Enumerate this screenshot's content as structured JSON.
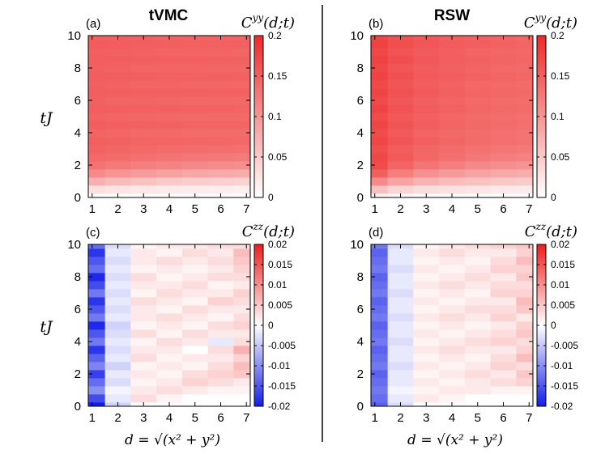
{
  "figure": {
    "panel_labels": [
      "(a)",
      "(b)",
      "(c)",
      "(d)"
    ],
    "column_titles": [
      "tVMC",
      "RSW"
    ],
    "y_axis_label": "tJ",
    "x_axis_label": "d = √(x² + y²)"
  },
  "chart_data": [
    {
      "type": "heatmap",
      "panel": "(a)",
      "title": "tVMC",
      "quantity": "C^yy(d;t)",
      "xlabel": "",
      "ylabel": "tJ",
      "x_ticks": [
        "1",
        "2",
        "3",
        "4",
        "5",
        "6",
        "7"
      ],
      "y_ticks": [
        "0",
        "2",
        "4",
        "6",
        "8",
        "10"
      ],
      "xlim": [
        0.85,
        7.15
      ],
      "ylim": [
        0,
        10
      ],
      "colorbar": {
        "range": [
          0,
          0.2
        ],
        "ticks": [
          "0",
          "0.05",
          "0.1",
          "0.15",
          "0.2"
        ],
        "colormap": "white-red"
      },
      "d_values": [
        1,
        2,
        3,
        4,
        5,
        6,
        7
      ],
      "t_values": [
        0,
        0.5,
        1,
        1.5,
        2,
        2.5,
        3,
        3.5,
        4,
        4.5,
        5,
        5.5,
        6,
        6.5,
        7,
        7.5,
        8,
        8.5,
        9,
        9.5,
        10
      ],
      "values": [
        [
          0.0,
          0.0,
          0.0,
          0.0,
          0.0,
          0.0,
          0.0
        ],
        [
          0.03,
          0.025,
          0.022,
          0.02,
          0.018,
          0.017,
          0.016
        ],
        [
          0.075,
          0.065,
          0.058,
          0.052,
          0.048,
          0.045,
          0.042
        ],
        [
          0.11,
          0.1,
          0.093,
          0.088,
          0.083,
          0.08,
          0.077
        ],
        [
          0.132,
          0.126,
          0.12,
          0.116,
          0.112,
          0.109,
          0.106
        ],
        [
          0.142,
          0.138,
          0.134,
          0.131,
          0.128,
          0.126,
          0.124
        ],
        [
          0.147,
          0.144,
          0.141,
          0.139,
          0.137,
          0.136,
          0.135
        ],
        [
          0.15,
          0.148,
          0.146,
          0.145,
          0.144,
          0.143,
          0.142
        ],
        [
          0.146,
          0.144,
          0.142,
          0.141,
          0.14,
          0.139,
          0.138
        ],
        [
          0.151,
          0.149,
          0.148,
          0.147,
          0.146,
          0.145,
          0.145
        ],
        [
          0.147,
          0.145,
          0.144,
          0.143,
          0.142,
          0.141,
          0.141
        ],
        [
          0.152,
          0.15,
          0.149,
          0.148,
          0.147,
          0.147,
          0.146
        ],
        [
          0.148,
          0.146,
          0.145,
          0.144,
          0.143,
          0.143,
          0.142
        ],
        [
          0.152,
          0.15,
          0.149,
          0.148,
          0.148,
          0.147,
          0.147
        ],
        [
          0.148,
          0.147,
          0.146,
          0.145,
          0.144,
          0.144,
          0.143
        ],
        [
          0.152,
          0.151,
          0.15,
          0.149,
          0.148,
          0.148,
          0.147
        ],
        [
          0.149,
          0.147,
          0.146,
          0.145,
          0.145,
          0.144,
          0.144
        ],
        [
          0.152,
          0.151,
          0.15,
          0.149,
          0.149,
          0.148,
          0.148
        ],
        [
          0.149,
          0.148,
          0.147,
          0.146,
          0.145,
          0.145,
          0.144
        ],
        [
          0.153,
          0.151,
          0.15,
          0.15,
          0.149,
          0.149,
          0.148
        ],
        [
          0.15,
          0.148,
          0.147,
          0.146,
          0.146,
          0.145,
          0.145
        ]
      ]
    },
    {
      "type": "heatmap",
      "panel": "(b)",
      "title": "RSW",
      "quantity": "C^yy(d;t)",
      "xlabel": "",
      "ylabel": "",
      "x_ticks": [
        "1",
        "2",
        "3",
        "4",
        "5",
        "6",
        "7"
      ],
      "y_ticks": [
        "0",
        "2",
        "4",
        "6",
        "8",
        "10"
      ],
      "xlim": [
        0.85,
        7.15
      ],
      "ylim": [
        0,
        10
      ],
      "colorbar": {
        "range": [
          0,
          0.2
        ],
        "ticks": [
          "0",
          "0.05",
          "0.1",
          "0.15",
          "0.2"
        ],
        "colormap": "white-red"
      },
      "d_values": [
        1,
        2,
        3,
        4,
        5,
        6,
        7
      ],
      "t_values": [
        0,
        0.5,
        1,
        1.5,
        2,
        2.5,
        3,
        3.5,
        4,
        4.5,
        5,
        5.5,
        6,
        6.5,
        7,
        7.5,
        8,
        8.5,
        9,
        9.5,
        10
      ],
      "values": [
        [
          0.01,
          0.005,
          0.003,
          0.002,
          0.001,
          0.001,
          0.0
        ],
        [
          0.06,
          0.04,
          0.032,
          0.028,
          0.024,
          0.021,
          0.019
        ],
        [
          0.11,
          0.085,
          0.072,
          0.064,
          0.058,
          0.053,
          0.049
        ],
        [
          0.15,
          0.12,
          0.105,
          0.095,
          0.087,
          0.081,
          0.076
        ],
        [
          0.168,
          0.145,
          0.13,
          0.12,
          0.112,
          0.106,
          0.101
        ],
        [
          0.172,
          0.155,
          0.143,
          0.135,
          0.128,
          0.122,
          0.118
        ],
        [
          0.165,
          0.152,
          0.144,
          0.138,
          0.133,
          0.129,
          0.126
        ],
        [
          0.174,
          0.16,
          0.15,
          0.144,
          0.139,
          0.135,
          0.132
        ],
        [
          0.168,
          0.155,
          0.146,
          0.141,
          0.137,
          0.134,
          0.131
        ],
        [
          0.175,
          0.161,
          0.152,
          0.146,
          0.142,
          0.139,
          0.136
        ],
        [
          0.169,
          0.157,
          0.149,
          0.144,
          0.14,
          0.137,
          0.135
        ],
        [
          0.176,
          0.162,
          0.153,
          0.148,
          0.144,
          0.141,
          0.139
        ],
        [
          0.17,
          0.158,
          0.15,
          0.145,
          0.142,
          0.139,
          0.137
        ],
        [
          0.176,
          0.163,
          0.155,
          0.149,
          0.146,
          0.143,
          0.141
        ],
        [
          0.171,
          0.159,
          0.151,
          0.147,
          0.143,
          0.141,
          0.139
        ],
        [
          0.177,
          0.164,
          0.156,
          0.151,
          0.147,
          0.145,
          0.143
        ],
        [
          0.172,
          0.16,
          0.153,
          0.148,
          0.145,
          0.142,
          0.14
        ],
        [
          0.177,
          0.165,
          0.157,
          0.152,
          0.148,
          0.146,
          0.144
        ],
        [
          0.172,
          0.161,
          0.154,
          0.149,
          0.146,
          0.144,
          0.142
        ],
        [
          0.178,
          0.166,
          0.158,
          0.153,
          0.15,
          0.147,
          0.145
        ],
        [
          0.173,
          0.162,
          0.155,
          0.15,
          0.147,
          0.145,
          0.143
        ]
      ]
    },
    {
      "type": "heatmap",
      "panel": "(c)",
      "title": "",
      "quantity": "C^zz(d;t)",
      "xlabel": "d = √(x² + y²)",
      "ylabel": "tJ",
      "x_ticks": [
        "1",
        "2",
        "3",
        "4",
        "5",
        "6",
        "7"
      ],
      "y_ticks": [
        "0",
        "2",
        "4",
        "6",
        "8",
        "10"
      ],
      "xlim": [
        0.85,
        7.15
      ],
      "ylim": [
        0,
        10
      ],
      "colorbar": {
        "range": [
          -0.02,
          0.02
        ],
        "ticks": [
          "-0.02",
          "-0.015",
          "-0.01",
          "-0.005",
          "0",
          "0.005",
          "0.01",
          "0.015",
          "0.02"
        ],
        "colormap": "blue-white-red"
      },
      "d_values": [
        1,
        2,
        3,
        4,
        5,
        6,
        7
      ],
      "t_values": [
        0,
        0.5,
        1,
        1.5,
        2,
        2.5,
        3,
        3.5,
        4,
        4.5,
        5,
        5.5,
        6,
        6.5,
        7,
        7.5,
        8,
        8.5,
        9,
        9.5,
        10
      ],
      "values": [
        [
          -0.02,
          -0.004,
          0.0,
          0.0,
          0.0,
          0.0,
          0.0
        ],
        [
          -0.016,
          -0.002,
          0.003,
          0.001,
          0.0,
          0.0,
          0.0
        ],
        [
          -0.01,
          -0.001,
          0.002,
          0.003,
          0.002,
          0.001,
          0.001
        ],
        [
          -0.013,
          -0.003,
          0.001,
          0.002,
          0.004,
          0.003,
          0.002
        ],
        [
          -0.017,
          -0.002,
          0.002,
          0.001,
          0.003,
          0.004,
          0.005
        ],
        [
          -0.011,
          -0.004,
          0.001,
          0.002,
          0.001,
          0.003,
          0.006
        ],
        [
          -0.014,
          -0.002,
          0.003,
          0.001,
          0.002,
          0.002,
          0.004
        ],
        [
          -0.018,
          -0.003,
          0.002,
          0.002,
          0.0,
          0.003,
          0.007
        ],
        [
          -0.012,
          -0.002,
          0.001,
          0.003,
          0.002,
          -0.002,
          0.003
        ],
        [
          -0.015,
          -0.003,
          0.003,
          0.001,
          0.003,
          0.002,
          0.002
        ],
        [
          -0.019,
          -0.004,
          0.001,
          0.002,
          0.001,
          0.003,
          0.004
        ],
        [
          -0.012,
          -0.002,
          0.002,
          0.003,
          0.002,
          0.001,
          0.003
        ],
        [
          -0.015,
          -0.003,
          0.002,
          0.001,
          0.003,
          0.002,
          0.002
        ],
        [
          -0.018,
          -0.002,
          0.003,
          0.002,
          0.001,
          0.004,
          0.003
        ],
        [
          -0.012,
          -0.003,
          0.001,
          0.003,
          0.002,
          0.002,
          0.004
        ],
        [
          -0.016,
          -0.002,
          0.002,
          0.002,
          0.003,
          0.001,
          0.002
        ],
        [
          -0.019,
          -0.003,
          0.003,
          0.001,
          0.002,
          0.003,
          0.003
        ],
        [
          -0.013,
          -0.002,
          0.001,
          0.002,
          0.001,
          0.002,
          0.004
        ],
        [
          -0.015,
          -0.003,
          0.002,
          0.003,
          0.002,
          0.003,
          0.005
        ],
        [
          -0.018,
          -0.002,
          0.002,
          0.001,
          0.003,
          0.002,
          0.006
        ],
        [
          -0.013,
          -0.003,
          0.001,
          0.002,
          0.002,
          0.003,
          0.003
        ]
      ]
    },
    {
      "type": "heatmap",
      "panel": "(d)",
      "title": "",
      "quantity": "C^zz(d;t)",
      "xlabel": "d = √(x² + y²)",
      "ylabel": "",
      "x_ticks": [
        "1",
        "2",
        "3",
        "4",
        "5",
        "6",
        "7"
      ],
      "y_ticks": [
        "0",
        "2",
        "4",
        "6",
        "8",
        "10"
      ],
      "xlim": [
        0.85,
        7.15
      ],
      "ylim": [
        0,
        10
      ],
      "colorbar": {
        "range": [
          -0.02,
          0.02
        ],
        "ticks": [
          "-0.02",
          "-0.015",
          "-0.01",
          "-0.005",
          "0",
          "0.005",
          "0.01",
          "0.015",
          "0.02"
        ],
        "colormap": "blue-white-red"
      },
      "d_values": [
        1,
        2,
        3,
        4,
        5,
        6,
        7
      ],
      "t_values": [
        0,
        0.5,
        1,
        1.5,
        2,
        2.5,
        3,
        3.5,
        4,
        4.5,
        5,
        5.5,
        6,
        6.5,
        7,
        7.5,
        8,
        8.5,
        9,
        9.5,
        10
      ],
      "values": [
        [
          -0.014,
          -0.003,
          0.0,
          0.0,
          0.0,
          0.0,
          0.0
        ],
        [
          -0.013,
          -0.002,
          0.002,
          0.001,
          0.0,
          0.0,
          0.0
        ],
        [
          -0.012,
          -0.001,
          0.001,
          0.002,
          0.002,
          0.001,
          0.001
        ],
        [
          -0.013,
          -0.002,
          0.002,
          0.001,
          0.002,
          0.003,
          0.004
        ],
        [
          -0.014,
          -0.002,
          0.001,
          0.002,
          0.003,
          0.002,
          0.005
        ],
        [
          -0.012,
          -0.003,
          0.002,
          0.001,
          0.002,
          0.004,
          0.003
        ],
        [
          -0.013,
          -0.002,
          0.001,
          0.002,
          0.001,
          0.003,
          0.006
        ],
        [
          -0.014,
          -0.002,
          0.002,
          0.003,
          0.002,
          0.002,
          0.004
        ],
        [
          -0.012,
          -0.003,
          0.001,
          0.002,
          0.003,
          0.004,
          0.003
        ],
        [
          -0.013,
          -0.002,
          0.002,
          0.001,
          0.002,
          0.003,
          0.005
        ],
        [
          -0.014,
          -0.002,
          0.001,
          0.002,
          0.001,
          0.002,
          0.004
        ],
        [
          -0.012,
          -0.003,
          0.002,
          0.003,
          0.002,
          0.004,
          0.002
        ],
        [
          -0.013,
          -0.002,
          0.001,
          0.002,
          0.003,
          0.003,
          0.005
        ],
        [
          -0.014,
          -0.002,
          0.002,
          0.001,
          0.002,
          0.002,
          0.006
        ],
        [
          -0.012,
          -0.003,
          0.001,
          0.002,
          0.001,
          0.004,
          0.004
        ],
        [
          -0.013,
          -0.002,
          0.002,
          0.003,
          0.002,
          0.003,
          0.003
        ],
        [
          -0.014,
          -0.002,
          0.001,
          0.002,
          0.003,
          0.002,
          0.005
        ],
        [
          -0.012,
          -0.003,
          0.002,
          0.001,
          0.002,
          0.004,
          0.004
        ],
        [
          -0.013,
          -0.002,
          0.001,
          0.002,
          0.001,
          0.003,
          0.006
        ],
        [
          -0.014,
          -0.002,
          0.002,
          0.003,
          0.002,
          0.002,
          0.004
        ],
        [
          -0.012,
          -0.003,
          0.001,
          0.002,
          0.003,
          0.004,
          0.005
        ]
      ]
    }
  ]
}
